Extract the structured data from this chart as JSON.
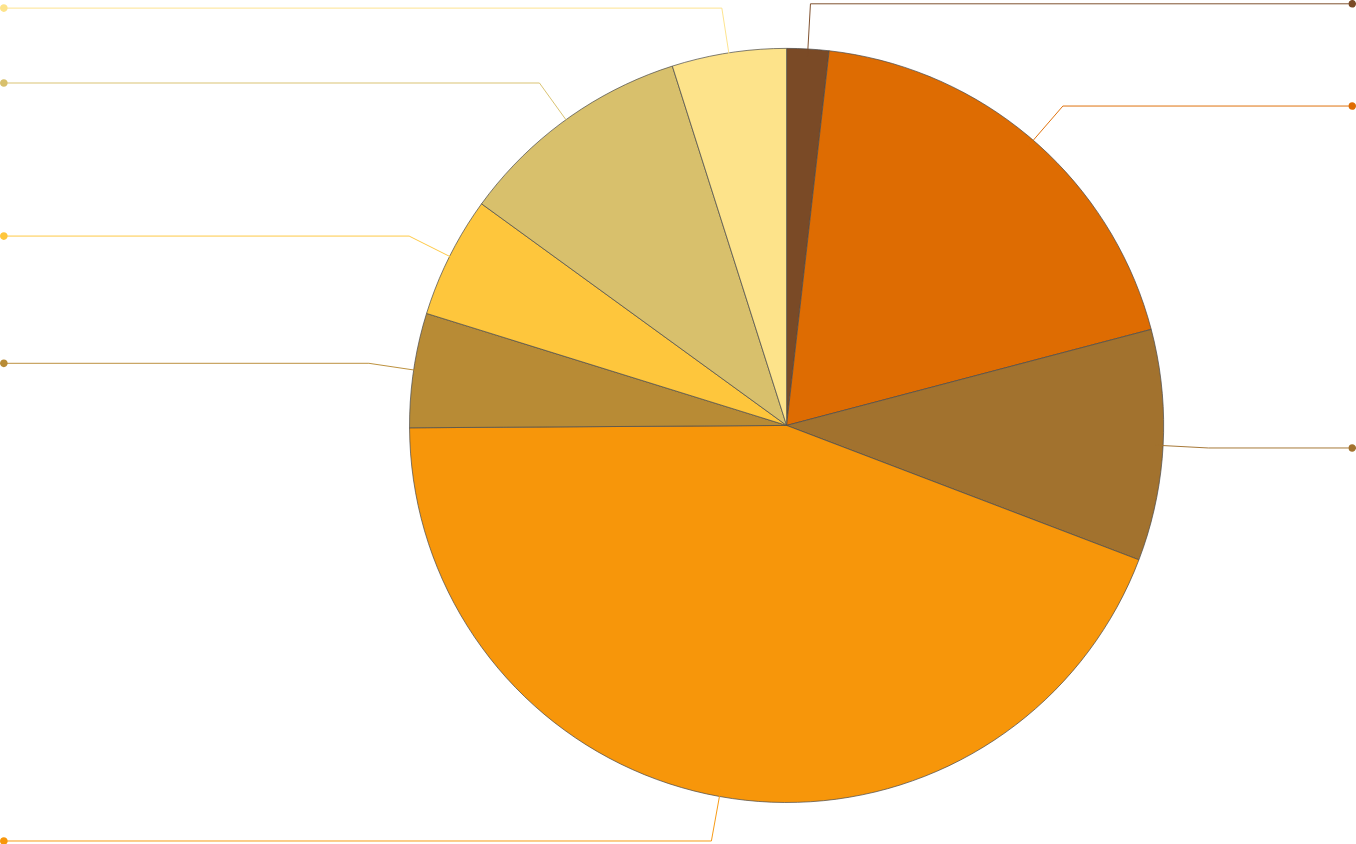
{
  "chart_data": {
    "type": "pie",
    "categories": [
      null,
      null,
      null,
      null,
      null,
      null,
      null,
      null
    ],
    "values": [
      1.8,
      19.1,
      9.9,
      44.1,
      4.9,
      5.2,
      10.1,
      4.9
    ],
    "colors": [
      "#7a4a26",
      "#de6c02",
      "#a2722e",
      "#f7960a",
      "#b88b35",
      "#fec63c",
      "#d8c06c",
      "#fde38a"
    ]
  }
}
